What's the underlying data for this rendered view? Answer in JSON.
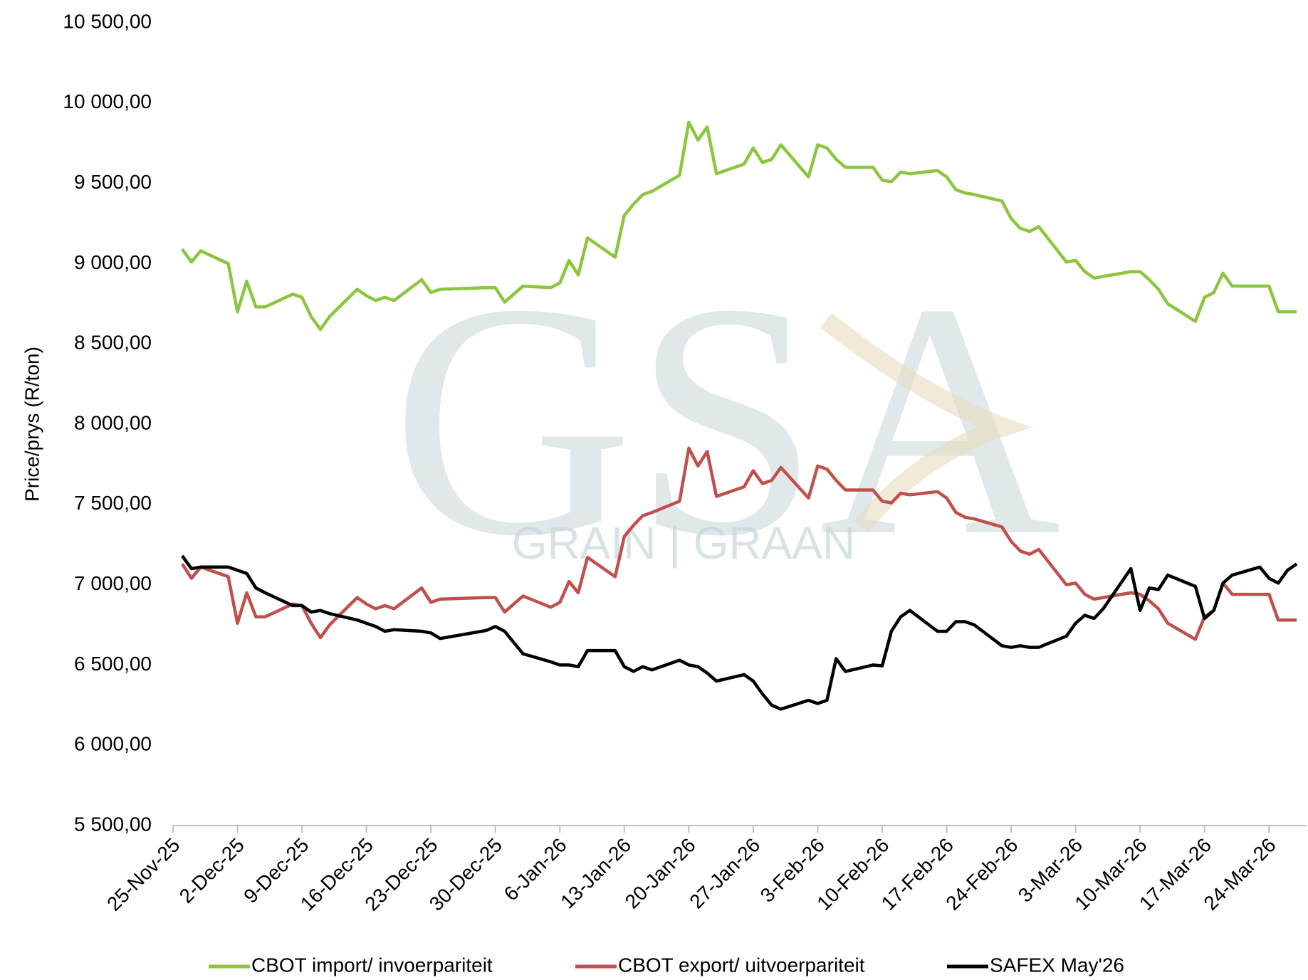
{
  "chart_data": {
    "type": "line",
    "y_label": "Price/prys (R/ton)",
    "watermark": {
      "logo": "GSA",
      "text": "GRAIN | GRAAN"
    },
    "x": [
      "2025-11-26",
      "2025-11-27",
      "2025-11-28",
      "2025-12-01",
      "2025-12-02",
      "2025-12-03",
      "2025-12-04",
      "2025-12-05",
      "2025-12-08",
      "2025-12-09",
      "2025-12-10",
      "2025-12-11",
      "2025-12-12",
      "2025-12-15",
      "2025-12-16",
      "2025-12-17",
      "2025-12-18",
      "2025-12-19",
      "2025-12-22",
      "2025-12-23",
      "2025-12-24",
      "2025-12-29",
      "2025-12-30",
      "2025-12-31",
      "2026-01-02",
      "2026-01-05",
      "2026-01-06",
      "2026-01-07",
      "2026-01-08",
      "2026-01-09",
      "2026-01-12",
      "2026-01-13",
      "2026-01-14",
      "2026-01-15",
      "2026-01-16",
      "2026-01-19",
      "2026-01-20",
      "2026-01-21",
      "2026-01-22",
      "2026-01-23",
      "2026-01-26",
      "2026-01-27",
      "2026-01-28",
      "2026-01-29",
      "2026-01-30",
      "2026-02-02",
      "2026-02-03",
      "2026-02-04",
      "2026-02-05",
      "2026-02-06",
      "2026-02-09",
      "2026-02-10",
      "2026-02-11",
      "2026-02-12",
      "2026-02-13",
      "2026-02-16",
      "2026-02-17",
      "2026-02-18",
      "2026-02-19",
      "2026-02-20",
      "2026-02-23",
      "2026-02-24",
      "2026-02-25",
      "2026-02-26",
      "2026-02-27",
      "2026-03-02",
      "2026-03-03",
      "2026-03-04",
      "2026-03-05",
      "2026-03-06",
      "2026-03-09",
      "2026-03-10",
      "2026-03-11",
      "2026-03-12",
      "2026-03-13",
      "2026-03-16",
      "2026-03-17",
      "2026-03-18",
      "2026-03-19",
      "2026-03-20",
      "2026-03-23",
      "2026-03-24",
      "2026-03-25",
      "2026-03-26",
      "2026-03-27"
    ],
    "series": [
      {
        "name": "CBOT import/ invoerpariteit",
        "color": "#8cc63f",
        "values": [
          9090,
          9010,
          9080,
          9000,
          8700,
          8890,
          8730,
          8730,
          8810,
          8790,
          8670,
          8590,
          8670,
          8840,
          8800,
          8770,
          8790,
          8770,
          8900,
          8820,
          8840,
          8850,
          8850,
          8760,
          8860,
          8850,
          8880,
          9020,
          8930,
          9160,
          9040,
          9300,
          9370,
          9430,
          9450,
          9550,
          9880,
          9770,
          9850,
          9560,
          9620,
          9720,
          9630,
          9650,
          9740,
          9540,
          9740,
          9720,
          9650,
          9600,
          9600,
          9520,
          9510,
          9570,
          9560,
          9580,
          9540,
          9460,
          9440,
          9430,
          9390,
          9280,
          9220,
          9200,
          9230,
          9010,
          9020,
          8950,
          8910,
          8920,
          8950,
          8950,
          8900,
          8840,
          8750,
          8640,
          8790,
          8820,
          8940,
          8860,
          8860,
          8860,
          8700,
          8700,
          8700
        ]
      },
      {
        "name": "CBOT export/ uitvoerpariteit",
        "color": "#c0504d",
        "values": [
          7130,
          7040,
          7110,
          7050,
          6760,
          6950,
          6800,
          6800,
          6880,
          6870,
          6760,
          6670,
          6750,
          6920,
          6880,
          6850,
          6870,
          6850,
          6980,
          6890,
          6910,
          6920,
          6920,
          6830,
          6930,
          6860,
          6890,
          7020,
          6950,
          7170,
          7050,
          7300,
          7370,
          7430,
          7450,
          7520,
          7850,
          7740,
          7830,
          7550,
          7610,
          7710,
          7630,
          7650,
          7730,
          7540,
          7740,
          7720,
          7650,
          7590,
          7590,
          7520,
          7510,
          7570,
          7560,
          7580,
          7540,
          7450,
          7420,
          7410,
          7360,
          7270,
          7210,
          7190,
          7220,
          7000,
          7010,
          6940,
          6910,
          6920,
          6950,
          6940,
          6900,
          6850,
          6760,
          6660,
          6800,
          6840,
          7010,
          6940,
          6940,
          6940,
          6780,
          6780,
          6780
        ]
      },
      {
        "name": "SAFEX May'26",
        "color": "#000000",
        "values": [
          7180,
          7100,
          7110,
          7110,
          7090,
          7070,
          6980,
          6950,
          6870,
          6870,
          6830,
          6840,
          6820,
          6780,
          6760,
          6740,
          6710,
          6720,
          6710,
          6700,
          6665,
          6715,
          6740,
          6710,
          6570,
          6520,
          6500,
          6500,
          6490,
          6590,
          6590,
          6490,
          6460,
          6490,
          6470,
          6530,
          6500,
          6490,
          6450,
          6400,
          6440,
          6400,
          6320,
          6250,
          6225,
          6280,
          6260,
          6280,
          6540,
          6460,
          6500,
          6495,
          6710,
          6800,
          6840,
          6710,
          6710,
          6770,
          6770,
          6750,
          6620,
          6610,
          6620,
          6610,
          6610,
          6680,
          6760,
          6810,
          6790,
          6850,
          7100,
          6840,
          6980,
          6970,
          7060,
          6990,
          6790,
          6840,
          7010,
          7060,
          7110,
          7040,
          7010,
          7090,
          7130
        ]
      }
    ],
    "xlim": [
      "2025-11-25",
      "2026-03-28"
    ],
    "xticks": [
      {
        "value": "2025-11-25",
        "label": "25-Nov-25"
      },
      {
        "value": "2025-12-02",
        "label": "2-Dec-25"
      },
      {
        "value": "2025-12-09",
        "label": "9-Dec-25"
      },
      {
        "value": "2025-12-16",
        "label": "16-Dec-25"
      },
      {
        "value": "2025-12-23",
        "label": "23-Dec-25"
      },
      {
        "value": "2025-12-30",
        "label": "30-Dec-25"
      },
      {
        "value": "2026-01-06",
        "label": "6-Jan-26"
      },
      {
        "value": "2026-01-13",
        "label": "13-Jan-26"
      },
      {
        "value": "2026-01-20",
        "label": "20-Jan-26"
      },
      {
        "value": "2026-01-27",
        "label": "27-Jan-26"
      },
      {
        "value": "2026-02-03",
        "label": "3-Feb-26"
      },
      {
        "value": "2026-02-10",
        "label": "10-Feb-26"
      },
      {
        "value": "2026-02-17",
        "label": "17-Feb-26"
      },
      {
        "value": "2026-02-24",
        "label": "24-Feb-26"
      },
      {
        "value": "2026-03-03",
        "label": "3-Mar-26"
      },
      {
        "value": "2026-03-10",
        "label": "10-Mar-26"
      },
      {
        "value": "2026-03-17",
        "label": "17-Mar-26"
      },
      {
        "value": "2026-03-24",
        "label": "24-Mar-26"
      }
    ],
    "ylim": [
      5500,
      10500
    ],
    "yticks": [
      {
        "value": 5500,
        "label": "5 500,00"
      },
      {
        "value": 6000,
        "label": "6 000,00"
      },
      {
        "value": 6500,
        "label": "6 500,00"
      },
      {
        "value": 7000,
        "label": "7 000,00"
      },
      {
        "value": 7500,
        "label": "7 500,00"
      },
      {
        "value": 8000,
        "label": "8 000,00"
      },
      {
        "value": 8500,
        "label": "8 500,00"
      },
      {
        "value": 9000,
        "label": "9 000,00"
      },
      {
        "value": 9500,
        "label": "9 500,00"
      },
      {
        "value": 10000,
        "label": "10 000,00"
      },
      {
        "value": 10500,
        "label": "10 500,00"
      }
    ],
    "grid": false,
    "legend": "bottom"
  }
}
